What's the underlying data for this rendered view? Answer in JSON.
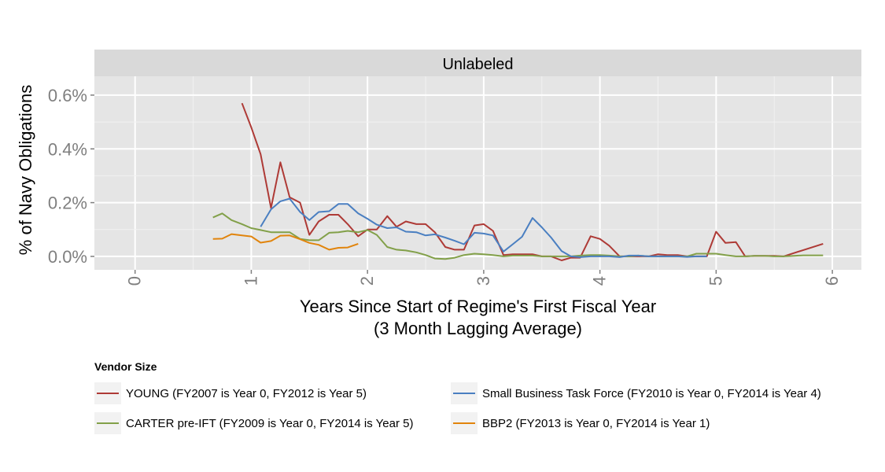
{
  "chart_data": {
    "type": "line",
    "facet_title": "Unlabeled",
    "xlabel": "Years Since Start of Regime's First Fiscal Year",
    "xlabel_sub": "(3 Month Lagging Average)",
    "ylabel": "% of Navy Obligations",
    "xlim": [
      -0.35,
      6.25
    ],
    "ylim": [
      -0.05,
      0.67
    ],
    "x_ticks": [
      "0",
      "1",
      "2",
      "3",
      "4",
      "5",
      "6"
    ],
    "y_ticks": [
      "0.0%",
      "0.2%",
      "0.4%",
      "0.6%"
    ],
    "y_tick_values": [
      0,
      0.2,
      0.4,
      0.6
    ],
    "grid": true,
    "legend_title": "Vendor Size",
    "legend_position": "bottom",
    "series": [
      {
        "name": "YOUNG (FY2007 is Year 0, FY2012 is Year 5)",
        "color": "#ae3a36",
        "x": [
          0.92,
          1.0,
          1.08,
          1.17,
          1.25,
          1.33,
          1.42,
          1.5,
          1.58,
          1.67,
          1.75,
          1.83,
          1.92,
          2.0,
          2.08,
          2.17,
          2.25,
          2.33,
          2.42,
          2.5,
          2.58,
          2.67,
          2.75,
          2.83,
          2.92,
          3.0,
          3.08,
          3.17,
          3.25,
          3.33,
          3.42,
          3.5,
          3.58,
          3.67,
          3.75,
          3.83,
          3.92,
          4.0,
          4.08,
          4.17,
          4.25,
          4.33,
          4.42,
          4.5,
          4.58,
          4.67,
          4.75,
          4.83,
          4.92,
          5.0,
          5.08,
          5.17,
          5.25,
          5.33,
          5.42,
          5.5,
          5.58,
          5.92
        ],
        "y": [
          0.57,
          0.48,
          0.38,
          0.18,
          0.35,
          0.22,
          0.2,
          0.08,
          0.13,
          0.155,
          0.155,
          0.12,
          0.075,
          0.1,
          0.1,
          0.15,
          0.11,
          0.13,
          0.12,
          0.12,
          0.09,
          0.035,
          0.025,
          0.025,
          0.115,
          0.12,
          0.095,
          0.005,
          0.008,
          0.008,
          0.008,
          0.0,
          0.0,
          -0.015,
          -0.005,
          -0.005,
          0.075,
          0.065,
          0.04,
          0.0,
          0.0,
          0.0,
          0.0,
          0.008,
          0.005,
          0.005,
          0.0,
          0.0,
          0.0,
          0.092,
          0.05,
          0.053,
          0.0,
          0.002,
          0.002,
          0.002,
          0.0,
          0.047
        ]
      },
      {
        "name": "CARTER pre-IFT (FY2009 is Year 0, FY2014 is Year 5)",
        "color": "#82a049",
        "x": [
          0.67,
          0.75,
          0.83,
          0.92,
          1.0,
          1.08,
          1.17,
          1.25,
          1.33,
          1.42,
          1.5,
          1.58,
          1.67,
          1.75,
          1.83,
          1.92,
          2.0,
          2.08,
          2.17,
          2.25,
          2.33,
          2.42,
          2.5,
          2.58,
          2.67,
          2.75,
          2.83,
          2.92,
          3.0,
          3.08,
          3.17,
          3.25,
          3.33,
          3.42,
          3.5,
          3.58,
          3.67,
          3.75,
          3.83,
          3.92,
          4.0,
          4.08,
          4.17,
          4.25,
          4.33,
          4.42,
          4.5,
          4.58,
          4.67,
          4.75,
          4.83,
          4.92,
          5.0,
          5.08,
          5.17,
          5.25,
          5.33,
          5.42,
          5.5,
          5.58,
          5.67,
          5.75,
          5.83,
          5.92
        ],
        "y": [
          0.145,
          0.16,
          0.135,
          0.12,
          0.105,
          0.098,
          0.09,
          0.09,
          0.09,
          0.065,
          0.06,
          0.06,
          0.088,
          0.09,
          0.095,
          0.09,
          0.098,
          0.08,
          0.035,
          0.025,
          0.022,
          0.015,
          0.005,
          -0.008,
          -0.01,
          -0.005,
          0.005,
          0.01,
          0.008,
          0.005,
          0.0,
          0.003,
          0.003,
          0.003,
          0.0,
          0.0,
          0.0,
          0.0,
          0.003,
          0.005,
          0.005,
          0.003,
          0.0,
          0.0,
          0.003,
          0.0,
          0.0,
          0.0,
          0.0,
          0.0,
          0.01,
          0.01,
          0.01,
          0.005,
          0.0,
          0.0,
          0.002,
          0.002,
          0.0,
          0.0,
          0.002,
          0.004,
          0.004,
          0.004
        ]
      },
      {
        "name": "Small Business Task Force (FY2010 is Year 0, FY2014 is Year 4)",
        "color": "#4a7fc1",
        "x": [
          1.08,
          1.17,
          1.25,
          1.33,
          1.42,
          1.5,
          1.58,
          1.67,
          1.75,
          1.83,
          1.92,
          2.0,
          2.08,
          2.17,
          2.25,
          2.33,
          2.42,
          2.5,
          2.58,
          2.67,
          2.75,
          2.83,
          2.92,
          3.0,
          3.08,
          3.17,
          3.25,
          3.33,
          3.42,
          3.5,
          3.58,
          3.67,
          3.75,
          3.83,
          3.92,
          4.0,
          4.08,
          4.17,
          4.25,
          4.33,
          4.42,
          4.5,
          4.58,
          4.67,
          4.75,
          4.83,
          4.92
        ],
        "y": [
          0.11,
          0.175,
          0.205,
          0.215,
          0.165,
          0.135,
          0.165,
          0.168,
          0.195,
          0.195,
          0.16,
          0.14,
          0.118,
          0.105,
          0.108,
          0.092,
          0.09,
          0.078,
          0.082,
          0.07,
          0.058,
          0.045,
          0.088,
          0.085,
          0.078,
          0.018,
          0.045,
          0.073,
          0.143,
          0.108,
          0.07,
          0.02,
          0.0,
          -0.003,
          0.0,
          0.0,
          0.0,
          -0.003,
          0.003,
          0.003,
          0.0,
          0.0,
          0.0,
          0.0,
          -0.002,
          0.0,
          0.0
        ]
      },
      {
        "name": "BBP2 (FY2013 is Year 0, FY2014 is Year 1)",
        "color": "#e1840c",
        "x": [
          0.67,
          0.75,
          0.83,
          0.92,
          1.0,
          1.08,
          1.17,
          1.25,
          1.33,
          1.42,
          1.5,
          1.58,
          1.67,
          1.75,
          1.83,
          1.92
        ],
        "y": [
          0.065,
          0.066,
          0.083,
          0.078,
          0.074,
          0.051,
          0.057,
          0.077,
          0.078,
          0.064,
          0.05,
          0.043,
          0.025,
          0.032,
          0.033,
          0.047
        ]
      }
    ]
  }
}
